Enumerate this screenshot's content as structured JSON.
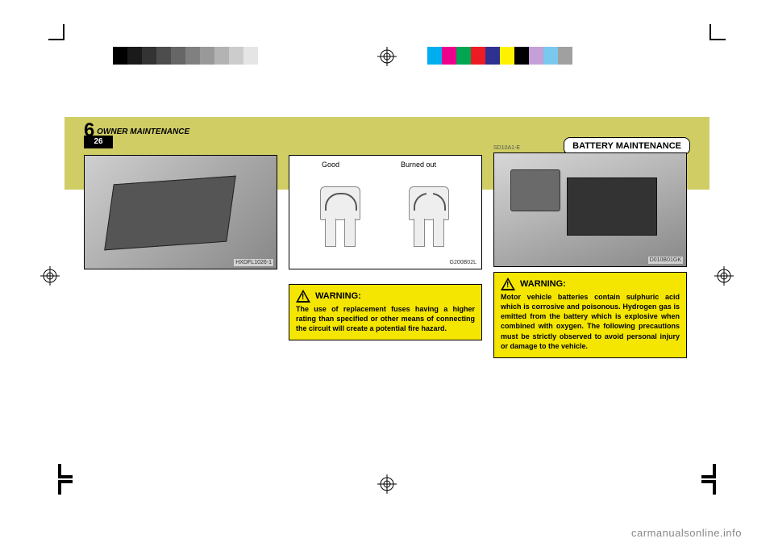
{
  "header": {
    "chapter_number": "6",
    "chapter_title": "OWNER MAINTENANCE",
    "page_number": "26",
    "section_tab": "BATTERY MAINTENANCE"
  },
  "col1": {
    "fig_code": "HXDFL1026-1"
  },
  "col2": {
    "label_good": "Good",
    "label_burned": "Burned out",
    "fig_code": "G200B02L",
    "warning_title": "WARNING:",
    "warning_text": "The use of replacement fuses having a higher rating than specified or other means of connecting the circuit will create a potential fire hazard."
  },
  "col3": {
    "top_code": "SD10A1-E",
    "fig_code": "D010B01GK",
    "warning_title": "WARNING:",
    "warning_text": "Motor vehicle batteries contain sulphuric acid which is corrosive and poisonous. Hydrogen gas is emitted from the battery which is explosive when combined with oxygen. The following precautions must be strictly observed to avoid personal injury or damage to the vehicle."
  },
  "colorbar_left": [
    "#000000",
    "#1a1a1a",
    "#333333",
    "#4d4d4d",
    "#666666",
    "#808080",
    "#999999",
    "#b3b3b3",
    "#cccccc",
    "#e5e5e5",
    "#ffffff"
  ],
  "colorbar_right": [
    "#00aeef",
    "#ec008c",
    "#00a651",
    "#ed1c24",
    "#2e3192",
    "#fff200",
    "#000000",
    "#c49fd8",
    "#7ac8ee",
    "#a0a0a0",
    "#ffffff"
  ],
  "watermark": "carmanualsonline.info"
}
